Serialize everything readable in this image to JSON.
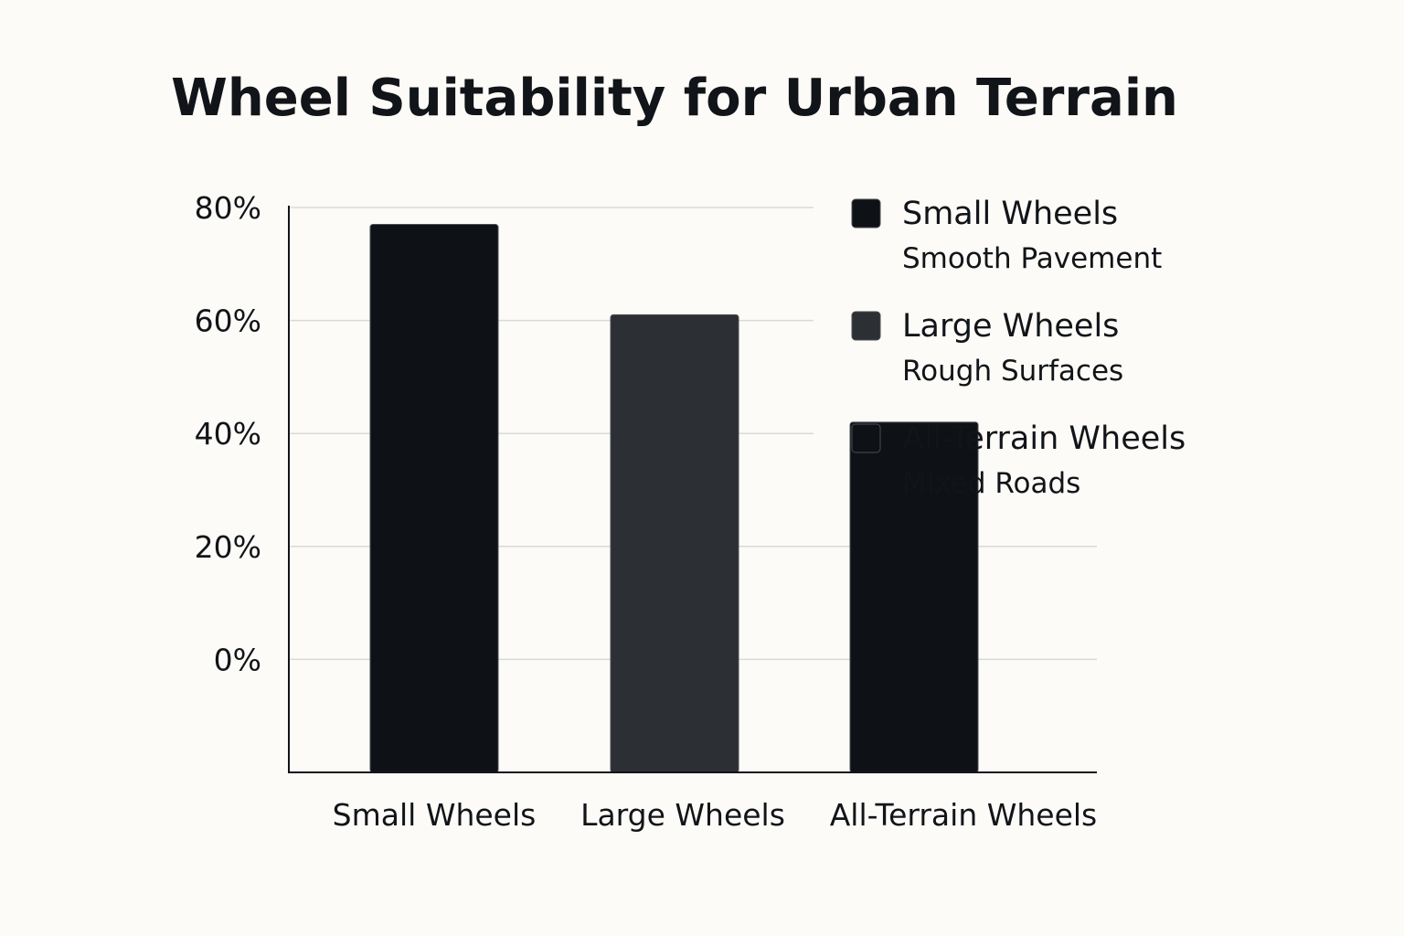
{
  "chart_data": {
    "type": "bar",
    "title": "Wheel Suitability for Urban Terrain",
    "categories": [
      "Small Wheels",
      "Large Wheels",
      "All-Terrain Wheels"
    ],
    "values": [
      77,
      61,
      42
    ],
    "y_ticks": [
      "0%",
      "20%",
      "40%",
      "60%",
      "80%"
    ],
    "y_tick_values": [
      0,
      20,
      40,
      60,
      80
    ],
    "ylim": [
      -20,
      80
    ],
    "grid": true,
    "legend_position": "top-right",
    "legend": [
      {
        "name": "Small Wheels",
        "description": "Smooth Pavement",
        "color": "#0e1115"
      },
      {
        "name": "Large Wheels",
        "description": "Rough Surfaces",
        "color": "#2c2f33"
      },
      {
        "name": "All-Terrain Wheels",
        "description": "Mixed Roads",
        "color": "#0e1115"
      }
    ],
    "bar_colors": [
      "#0e1115",
      "#2c2f33",
      "#0e1115"
    ]
  }
}
